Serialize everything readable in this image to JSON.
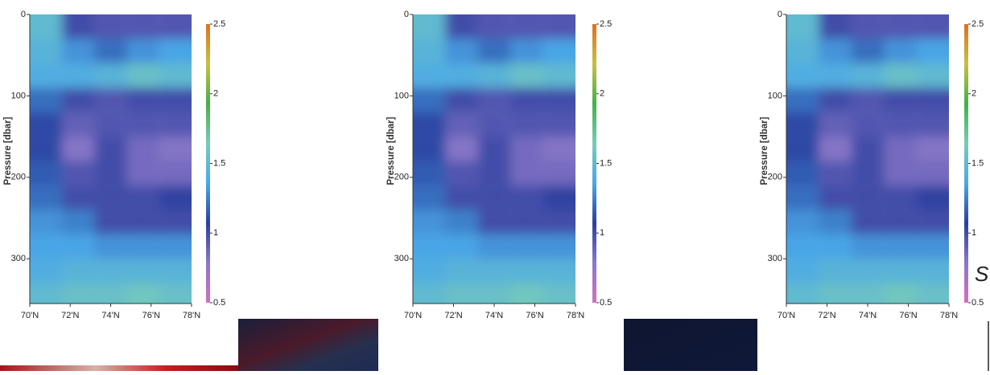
{
  "chart_data": [
    {
      "type": "contour",
      "ylabel": "Pressure [dbar]",
      "xlim": [
        70,
        78
      ],
      "xticks": [
        {
          "value": 70,
          "label": "70'N"
        },
        {
          "value": 72,
          "label": "72'N"
        },
        {
          "value": 74,
          "label": "74'N"
        },
        {
          "value": 76,
          "label": "76'N"
        },
        {
          "value": 78,
          "label": "78'N"
        }
      ],
      "ylim": [
        0,
        355
      ],
      "yticks": [
        0,
        100,
        200,
        300
      ],
      "clim": [
        0.5,
        2.5
      ],
      "cticks": [
        2.5,
        2,
        1.5,
        1,
        0.5
      ],
      "colors": [
        "#d070c0",
        "#8a78c8",
        "#2a3f9e",
        "#4aa8e8",
        "#78cbb8",
        "#44b048",
        "#c8c040",
        "#e07020"
      ],
      "x": [
        70.8,
        72.4,
        74,
        75.6,
        77.2
      ],
      "y": [
        15,
        45,
        75,
        105,
        135,
        165,
        195,
        225,
        255,
        285,
        315,
        345
      ],
      "z": [
        [
          1.5,
          1.0,
          0.95,
          0.95,
          0.95
        ],
        [
          1.45,
          1.3,
          1.2,
          1.3,
          1.35
        ],
        [
          1.4,
          1.4,
          1.45,
          1.55,
          1.5
        ],
        [
          1.2,
          1.0,
          0.95,
          1.0,
          1.0
        ],
        [
          1.1,
          0.9,
          0.95,
          0.95,
          0.95
        ],
        [
          1.1,
          0.8,
          1.0,
          0.85,
          0.8
        ],
        [
          1.15,
          0.95,
          1.0,
          0.85,
          0.85
        ],
        [
          1.2,
          1.0,
          1.0,
          1.0,
          1.05
        ],
        [
          1.3,
          1.25,
          1.0,
          1.0,
          1.0
        ],
        [
          1.35,
          1.35,
          1.3,
          1.3,
          1.3
        ],
        [
          1.4,
          1.45,
          1.45,
          1.45,
          1.45
        ],
        [
          1.5,
          1.55,
          1.55,
          1.6,
          1.55
        ]
      ]
    },
    {
      "type": "contour",
      "ylabel": "Pressure [dbar]",
      "xlim": [
        70,
        78
      ],
      "xticks": [
        {
          "value": 70,
          "label": "70'N"
        },
        {
          "value": 72,
          "label": "72'N"
        },
        {
          "value": 74,
          "label": "74'N"
        },
        {
          "value": 76,
          "label": "76'N"
        },
        {
          "value": 78,
          "label": "78'N"
        }
      ],
      "ylim": [
        0,
        355
      ],
      "yticks": [
        0,
        100,
        200,
        300
      ],
      "clim": [
        0.5,
        2.5
      ],
      "cticks": [
        2.5,
        2,
        1.5,
        1,
        0.5
      ],
      "colors": [
        "#d070c0",
        "#8a78c8",
        "#2a3f9e",
        "#4aa8e8",
        "#78cbb8",
        "#44b048",
        "#c8c040",
        "#e07020"
      ],
      "x": [
        70.8,
        72.4,
        74,
        75.6,
        77.2
      ],
      "y": [
        15,
        45,
        75,
        105,
        135,
        165,
        195,
        225,
        255,
        285,
        315,
        345
      ],
      "z": [
        [
          1.5,
          1.0,
          0.95,
          0.95,
          0.95
        ],
        [
          1.45,
          1.3,
          1.2,
          1.3,
          1.35
        ],
        [
          1.4,
          1.4,
          1.45,
          1.55,
          1.5
        ],
        [
          1.2,
          1.0,
          0.95,
          1.0,
          1.0
        ],
        [
          1.1,
          0.9,
          0.95,
          0.95,
          0.95
        ],
        [
          1.1,
          0.8,
          1.0,
          0.85,
          0.8
        ],
        [
          1.15,
          0.95,
          1.0,
          0.85,
          0.85
        ],
        [
          1.2,
          1.0,
          1.0,
          1.0,
          1.05
        ],
        [
          1.3,
          1.25,
          1.0,
          1.0,
          1.0
        ],
        [
          1.35,
          1.35,
          1.3,
          1.3,
          1.3
        ],
        [
          1.4,
          1.45,
          1.45,
          1.45,
          1.45
        ],
        [
          1.5,
          1.55,
          1.55,
          1.6,
          1.55
        ]
      ]
    },
    {
      "type": "contour",
      "ylabel": "Pressure [dbar]",
      "xlim": [
        70,
        78
      ],
      "xticks": [
        {
          "value": 70,
          "label": "70'N"
        },
        {
          "value": 72,
          "label": "72'N"
        },
        {
          "value": 74,
          "label": "74'N"
        },
        {
          "value": 76,
          "label": "76'N"
        },
        {
          "value": 78,
          "label": "78'N"
        }
      ],
      "ylim": [
        0,
        355
      ],
      "yticks": [
        0,
        100,
        200,
        300
      ],
      "clim": [
        0.5,
        2.5
      ],
      "cticks": [
        2.5,
        2,
        1.5,
        1,
        0.5
      ],
      "colors": [
        "#d070c0",
        "#8a78c8",
        "#2a3f9e",
        "#4aa8e8",
        "#78cbb8",
        "#44b048",
        "#c8c040",
        "#e07020"
      ],
      "x": [
        70.8,
        72.4,
        74,
        75.6,
        77.2
      ],
      "y": [
        15,
        45,
        75,
        105,
        135,
        165,
        195,
        225,
        255,
        285,
        315,
        345
      ],
      "z": [
        [
          1.5,
          1.0,
          0.95,
          0.95,
          0.95
        ],
        [
          1.45,
          1.3,
          1.2,
          1.3,
          1.35
        ],
        [
          1.4,
          1.4,
          1.45,
          1.55,
          1.5
        ],
        [
          1.2,
          1.0,
          0.95,
          1.0,
          1.0
        ],
        [
          1.1,
          0.9,
          0.95,
          0.95,
          0.95
        ],
        [
          1.1,
          0.8,
          1.0,
          0.85,
          0.8
        ],
        [
          1.15,
          0.95,
          1.0,
          0.85,
          0.85
        ],
        [
          1.2,
          1.0,
          1.0,
          1.0,
          1.05
        ],
        [
          1.3,
          1.25,
          1.0,
          1.0,
          1.0
        ],
        [
          1.35,
          1.35,
          1.3,
          1.3,
          1.3
        ],
        [
          1.4,
          1.45,
          1.45,
          1.45,
          1.45
        ],
        [
          1.5,
          1.55,
          1.55,
          1.6,
          1.55
        ]
      ]
    }
  ],
  "caption_fragment": "S"
}
